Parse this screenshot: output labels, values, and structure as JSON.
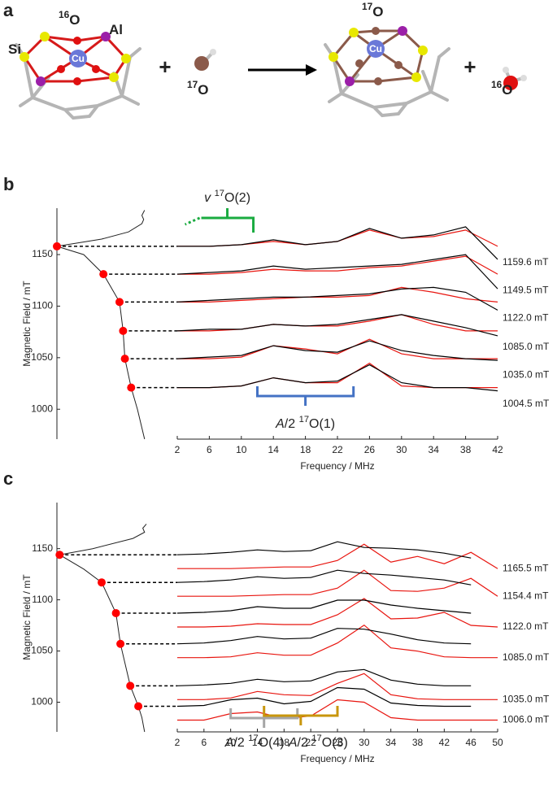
{
  "panel_a": {
    "label": "a",
    "texts": [
      {
        "parts": [
          {
            "t": "Si"
          }
        ]
      },
      {
        "parts": [
          {
            "t": "16",
            "style": "sup"
          },
          {
            "t": "O"
          }
        ]
      },
      {
        "parts": [
          {
            "t": "Al"
          }
        ]
      },
      {
        "parts": [
          {
            "t": "Cu"
          }
        ]
      },
      {
        "parts": [
          {
            "t": "+"
          }
        ]
      },
      {
        "parts": [
          {
            "t": "17",
            "style": "sup"
          },
          {
            "t": "O"
          }
        ]
      },
      {
        "parts": [
          {
            "t": "17",
            "style": "sup"
          },
          {
            "t": "O"
          }
        ]
      },
      {
        "parts": [
          {
            "t": "Cu"
          }
        ]
      },
      {
        "parts": [
          {
            "t": "+"
          }
        ]
      },
      {
        "parts": [
          {
            "t": "16",
            "style": "sup"
          },
          {
            "t": "O"
          }
        ]
      }
    ]
  },
  "chart_data": [
    {
      "type": "stacked-spectra",
      "panel_label": "b",
      "ylabel": "Magnetic Field / mT",
      "xlabel": "Frequency / MHz",
      "ylim": [
        971,
        1195
      ],
      "yticks": [
        1000,
        1050,
        1100,
        1150
      ],
      "xlim": [
        2,
        42
      ],
      "xticks": [
        2,
        6,
        10,
        14,
        18,
        22,
        26,
        30,
        34,
        38,
        42
      ],
      "x": [
        2,
        6,
        10,
        14,
        18,
        22,
        26,
        30,
        34,
        38,
        42
      ],
      "colors": {
        "experiment": "#000000",
        "simulation": "#e8150f",
        "marker": "#ff0000"
      },
      "absorption": {
        "field": [
          1193,
          1188,
          1184,
          1180,
          1172,
          1165,
          1158,
          1150,
          1131,
          1104,
          1076,
          1049,
          1021,
          1000,
          971
        ],
        "intensity": [
          0.02,
          0.05,
          0.03,
          0.05,
          0.2,
          0.5,
          1.0,
          0.7,
          0.48,
          0.3,
          0.26,
          0.24,
          0.17,
          0.1,
          0.02
        ]
      },
      "traces": [
        {
          "label": "1159.6 mT",
          "marker_field": 1158,
          "experiment": [
            0,
            0,
            0.1,
            0.4,
            0.1,
            0.3,
            1.1,
            0.5,
            0.7,
            1.2,
            -0.8
          ],
          "simulation": [
            0,
            0,
            0.1,
            0.3,
            0.1,
            0.3,
            1.0,
            0.5,
            0.6,
            1.0,
            0
          ]
        },
        {
          "label": "1149.5 mT",
          "marker_field": 1131,
          "experiment": [
            0,
            0.1,
            0.2,
            0.5,
            0.3,
            0.4,
            0.5,
            0.6,
            0.9,
            1.2,
            -0.9
          ],
          "simulation": [
            0,
            0,
            0.1,
            0.3,
            0.2,
            0.2,
            0.4,
            0.5,
            0.8,
            1.1,
            0
          ]
        },
        {
          "label": "1122.0 mT",
          "marker_field": 1104,
          "experiment": [
            0,
            0.1,
            0.2,
            0.3,
            0.3,
            0.4,
            0.5,
            0.8,
            0.9,
            0.6,
            -0.5
          ],
          "simulation": [
            0,
            0,
            0.1,
            0.2,
            0.3,
            0.3,
            0.4,
            0.9,
            0.6,
            0.2,
            0
          ]
        },
        {
          "label": "1085.0 mT",
          "marker_field": 1076,
          "experiment": [
            0,
            0.1,
            0.1,
            0.4,
            0.3,
            0.4,
            0.7,
            1.0,
            0.6,
            0.2,
            -0.3
          ],
          "simulation": [
            0,
            0,
            0.1,
            0.4,
            0.3,
            0.3,
            0.6,
            1.0,
            0.4,
            0,
            0
          ]
        },
        {
          "label": "1035.0 mT",
          "marker_field": 1049,
          "experiment": [
            0,
            0.1,
            0.2,
            0.8,
            0.5,
            0.4,
            1.1,
            0.5,
            0.2,
            0,
            -0.1
          ],
          "simulation": [
            0,
            0,
            0.1,
            0.8,
            0.6,
            0.3,
            1.2,
            0.3,
            0,
            0,
            0
          ]
        },
        {
          "label": "1004.5 mT",
          "marker_field": 1021,
          "experiment": [
            0,
            0,
            0.1,
            0.6,
            0.3,
            0.4,
            1.4,
            0.3,
            0,
            0,
            -0.2
          ],
          "simulation": [
            0,
            0,
            0.1,
            0.6,
            0.3,
            0.3,
            1.5,
            0.1,
            0,
            0,
            0
          ]
        }
      ],
      "annotations": [
        {
          "parts": [
            {
              "t": "A",
              "style": "italic"
            },
            {
              "t": "/2 "
            },
            {
              "t": "17",
              "style": "sup"
            },
            {
              "t": "O(1)"
            }
          ],
          "color": "#4472c4",
          "span": [
            12,
            24
          ]
        },
        {
          "parts": [
            {
              "t": "v",
              "style": "italic"
            },
            {
              "t": " "
            },
            {
              "t": "17",
              "style": "sup"
            },
            {
              "t": "O(2)"
            }
          ],
          "color": "#1aab40",
          "span": [
            5,
            11.5
          ]
        }
      ]
    },
    {
      "type": "stacked-spectra",
      "panel_label": "c",
      "ylabel": "Magnetic Field / mT",
      "xlabel": "Frequency / MHz",
      "ylim": [
        971,
        1195
      ],
      "yticks": [
        1000,
        1050,
        1100,
        1150
      ],
      "xlim": [
        2,
        50
      ],
      "xticks": [
        2,
        6,
        10,
        14,
        18,
        22,
        26,
        30,
        34,
        38,
        42,
        46,
        50
      ],
      "x": [
        2,
        6,
        10,
        14,
        18,
        22,
        26,
        30,
        34,
        38,
        42,
        46,
        50
      ],
      "colors": {
        "experiment": "#000000",
        "simulation": "#e8150f",
        "marker": "#ff0000"
      },
      "absorption": {
        "field": [
          1174,
          1170,
          1166,
          1160,
          1150,
          1144,
          1130,
          1117,
          1087,
          1057,
          1016,
          996,
          985,
          971
        ],
        "intensity": [
          0,
          0.04,
          0.02,
          0.15,
          0.6,
          0.97,
          0.7,
          0.5,
          0.34,
          0.29,
          0.18,
          0.09,
          0.05,
          0.02
        ]
      },
      "traces": [
        {
          "label": "1165.5 mT",
          "marker_field": 1144,
          "experiment": [
            0,
            0.1,
            0.3,
            0.6,
            0.4,
            0.5,
            1.6,
            0.9,
            0.8,
            0.6,
            0.2,
            -0.4,
            null
          ],
          "simulation": [
            0,
            0,
            0,
            0.1,
            0.2,
            0.2,
            1.0,
            3.0,
            0.8,
            1.5,
            0.6,
            2.0,
            0
          ]
        },
        {
          "label": "1154.4 mT",
          "marker_field": 1117,
          "experiment": [
            0,
            0.1,
            0.3,
            0.7,
            0.5,
            0.6,
            1.5,
            1.1,
            0.9,
            0.6,
            0.3,
            -0.3,
            null
          ],
          "simulation": [
            0,
            0,
            0,
            0.1,
            0.2,
            0.2,
            1.0,
            3.2,
            0.7,
            0.6,
            1.0,
            2.2,
            0
          ]
        },
        {
          "label": "1122.0 mT",
          "marker_field": 1087,
          "experiment": [
            0,
            0.1,
            0.3,
            0.8,
            0.6,
            0.6,
            1.6,
            1.6,
            1.0,
            0.6,
            0.3,
            0,
            null
          ],
          "simulation": [
            0,
            0,
            0.1,
            0.4,
            0.3,
            0.3,
            1.5,
            3.5,
            1.0,
            1.1,
            1.8,
            0.2,
            0
          ]
        },
        {
          "label": "1085.0 mT",
          "marker_field": 1057,
          "experiment": [
            0,
            0.1,
            0.4,
            0.9,
            0.6,
            0.7,
            1.9,
            1.8,
            1.2,
            0.5,
            0.1,
            0,
            null
          ],
          "simulation": [
            0,
            0,
            0.1,
            0.6,
            0.3,
            0.3,
            1.8,
            4.0,
            1.2,
            0.8,
            0.1,
            0,
            0
          ]
        },
        {
          "label": "1035.0 mT",
          "marker_field": 1016,
          "experiment": [
            0,
            0.1,
            0.3,
            0.8,
            0.5,
            0.6,
            1.7,
            2.0,
            0.7,
            0.2,
            0,
            0,
            null
          ],
          "simulation": [
            0,
            0,
            0.2,
            1.0,
            0.6,
            0.5,
            2.0,
            3.2,
            0.6,
            0.1,
            0,
            0,
            0
          ]
        },
        {
          "label": "1006.0 mT",
          "marker_field": 996,
          "experiment": [
            0,
            0.1,
            0.8,
            1.0,
            0.3,
            0.6,
            2.3,
            2.1,
            0.4,
            0.1,
            0,
            0,
            null
          ],
          "simulation": [
            0,
            0,
            0.8,
            1.0,
            0.2,
            0.5,
            2.5,
            2.2,
            0.3,
            0,
            0,
            0,
            0
          ]
        }
      ],
      "annotations": [
        {
          "parts": [
            {
              "t": "A",
              "style": "italic"
            },
            {
              "t": "/2 "
            },
            {
              "t": "17",
              "style": "sup"
            },
            {
              "t": "O(4)"
            }
          ],
          "color": "#a6a6a6",
          "span": [
            10,
            20
          ]
        },
        {
          "parts": [
            {
              "t": "A",
              "style": "italic"
            },
            {
              "t": "/2 "
            },
            {
              "t": "17",
              "style": "sup"
            },
            {
              "t": "O(3)"
            }
          ],
          "color": "#c8960c",
          "span": [
            15,
            26
          ]
        }
      ]
    }
  ]
}
